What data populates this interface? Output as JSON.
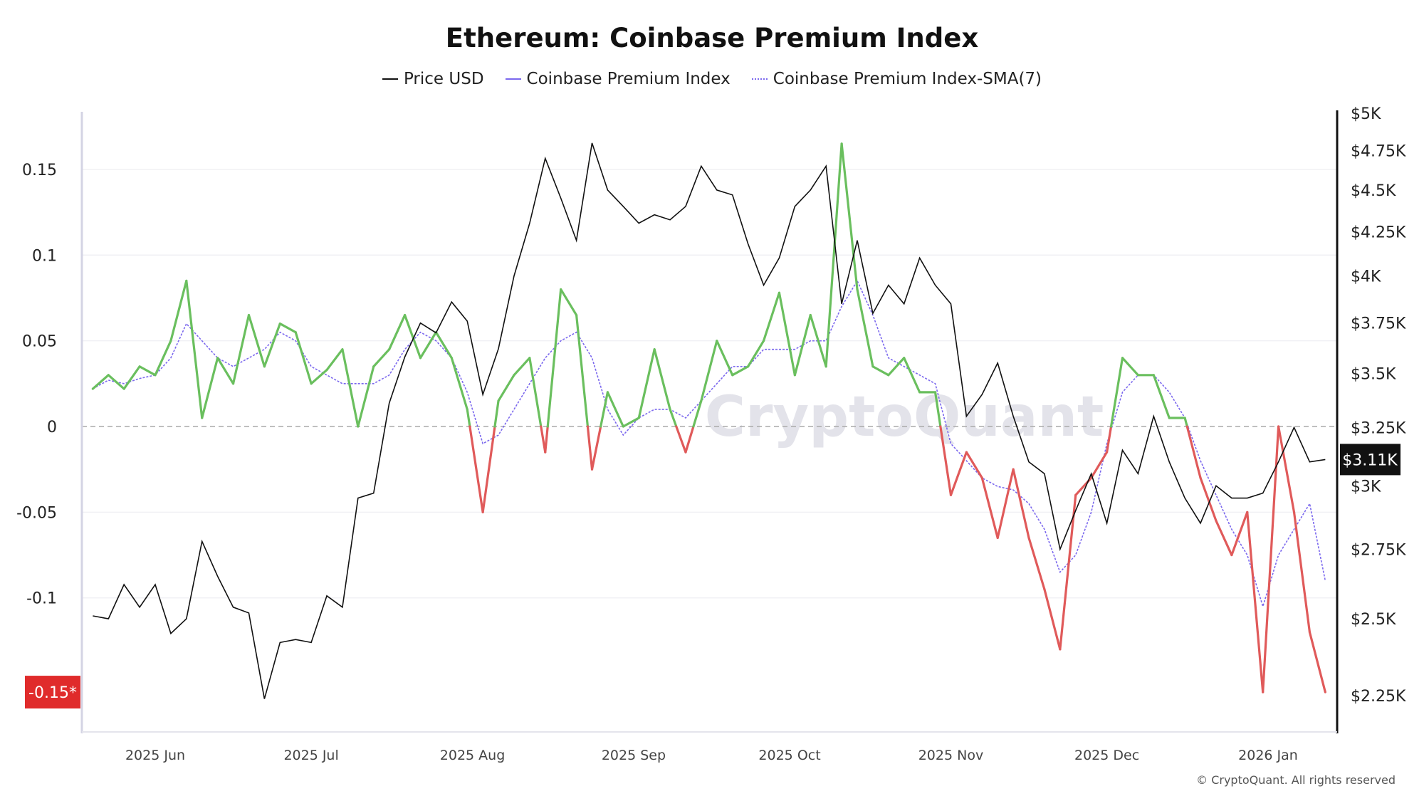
{
  "title": "Ethereum: Coinbase Premium Index",
  "legend": [
    "Price USD",
    "Coinbase Premium Index",
    "Coinbase Premium Index-SMA(7)"
  ],
  "watermark": "CryptoQuant",
  "copyright": "© CryptoQuant. All rights reserved",
  "colors": {
    "price": "#111111",
    "positive": "#6abf5e",
    "negative": "#e05a5a",
    "sma": "#7b68ee",
    "badge_left": "#e02b2b",
    "badge_right": "#111111"
  },
  "chart_data": {
    "type": "line",
    "title": "Ethereum: Coinbase Premium Index",
    "left_axis": {
      "ticks": [
        0.15,
        0.1,
        0.05,
        0,
        -0.05,
        -0.1
      ],
      "tick_labels": [
        "0.15",
        "0.1",
        "0.05",
        "0",
        "-0.05",
        "-0.1"
      ],
      "ylim": [
        -0.178,
        0.184
      ],
      "current_badge": "-0.15*"
    },
    "right_axis": {
      "scale": "log",
      "ticks": [
        5000,
        4750,
        4500,
        4250,
        4000,
        3750,
        3500,
        3250,
        3000,
        2750,
        2500,
        2250
      ],
      "tick_labels": [
        "$5K",
        "$4.75K",
        "$4.5K",
        "$4.25K",
        "$4K",
        "$3.75K",
        "$3.5K",
        "$3.25K",
        "$3K",
        "$2.75K",
        "$2.5K",
        "$2.25K"
      ],
      "current_badge": "$3.11K"
    },
    "x_ticks": [
      {
        "date": "2025-06-01",
        "label": "2025 Jun"
      },
      {
        "date": "2025-07-01",
        "label": "2025 Jul"
      },
      {
        "date": "2025-08-01",
        "label": "2025 Aug"
      },
      {
        "date": "2025-09-01",
        "label": "2025 Sep"
      },
      {
        "date": "2025-10-01",
        "label": "2025 Oct"
      },
      {
        "date": "2025-11-01",
        "label": "2025 Nov"
      },
      {
        "date": "2025-12-01",
        "label": "2025 Dec"
      },
      {
        "date": "2026-01-01",
        "label": "2026 Jan"
      }
    ],
    "grid": true,
    "legend_position": "top",
    "x": [
      "2025-05-20",
      "2025-05-23",
      "2025-05-26",
      "2025-05-29",
      "2025-06-01",
      "2025-06-04",
      "2025-06-07",
      "2025-06-10",
      "2025-06-13",
      "2025-06-16",
      "2025-06-19",
      "2025-06-22",
      "2025-06-25",
      "2025-06-28",
      "2025-07-01",
      "2025-07-04",
      "2025-07-07",
      "2025-07-10",
      "2025-07-13",
      "2025-07-16",
      "2025-07-19",
      "2025-07-22",
      "2025-07-25",
      "2025-07-28",
      "2025-07-31",
      "2025-08-03",
      "2025-08-06",
      "2025-08-09",
      "2025-08-12",
      "2025-08-15",
      "2025-08-18",
      "2025-08-21",
      "2025-08-24",
      "2025-08-27",
      "2025-08-30",
      "2025-09-02",
      "2025-09-05",
      "2025-09-08",
      "2025-09-11",
      "2025-09-14",
      "2025-09-17",
      "2025-09-20",
      "2025-09-23",
      "2025-09-26",
      "2025-09-29",
      "2025-10-02",
      "2025-10-05",
      "2025-10-08",
      "2025-10-11",
      "2025-10-14",
      "2025-10-17",
      "2025-10-20",
      "2025-10-23",
      "2025-10-26",
      "2025-10-29",
      "2025-11-01",
      "2025-11-04",
      "2025-11-07",
      "2025-11-10",
      "2025-11-13",
      "2025-11-16",
      "2025-11-19",
      "2025-11-22",
      "2025-11-25",
      "2025-11-28",
      "2025-12-01",
      "2025-12-04",
      "2025-12-07",
      "2025-12-10",
      "2025-12-13",
      "2025-12-16",
      "2025-12-19",
      "2025-12-22",
      "2025-12-25",
      "2025-12-28",
      "2025-12-31",
      "2026-01-03",
      "2026-01-06",
      "2026-01-09",
      "2026-01-12"
    ],
    "series": [
      {
        "name": "Price USD",
        "axis": "right",
        "values": [
          2510,
          2500,
          2620,
          2540,
          2620,
          2450,
          2500,
          2780,
          2650,
          2540,
          2520,
          2240,
          2420,
          2430,
          2420,
          2580,
          2540,
          2950,
          2970,
          3360,
          3580,
          3750,
          3700,
          3860,
          3760,
          3400,
          3620,
          4000,
          4300,
          4700,
          4450,
          4200,
          4800,
          4500,
          4400,
          4300,
          4350,
          4320,
          4400,
          4650,
          4500,
          4470,
          4180,
          3950,
          4100,
          4400,
          4500,
          4650,
          3850,
          4200,
          3800,
          3950,
          3850,
          4100,
          3950,
          3850,
          3300,
          3400,
          3550,
          3300,
          3100,
          3050,
          2750,
          2900,
          3050,
          2850,
          3150,
          3050,
          3300,
          3100,
          2950,
          2850,
          3000,
          2950,
          2950,
          2970,
          3100,
          3250,
          3100,
          3110
        ]
      },
      {
        "name": "Coinbase Premium Index",
        "axis": "left",
        "values": [
          0.022,
          0.03,
          0.022,
          0.035,
          0.03,
          0.05,
          0.085,
          0.005,
          0.04,
          0.025,
          0.065,
          0.035,
          0.06,
          0.055,
          0.025,
          0.033,
          0.045,
          0.0,
          0.035,
          0.045,
          0.065,
          0.04,
          0.055,
          0.04,
          0.01,
          -0.05,
          0.015,
          0.03,
          0.04,
          -0.015,
          0.08,
          0.065,
          -0.025,
          0.02,
          0.0,
          0.005,
          0.045,
          0.01,
          -0.015,
          0.015,
          0.05,
          0.03,
          0.035,
          0.05,
          0.078,
          0.03,
          0.065,
          0.035,
          0.165,
          0.08,
          0.035,
          0.03,
          0.04,
          0.02,
          0.02,
          -0.04,
          -0.015,
          -0.03,
          -0.065,
          -0.025,
          -0.065,
          -0.095,
          -0.13,
          -0.04,
          -0.03,
          -0.015,
          0.04,
          0.03,
          0.03,
          0.005,
          0.005,
          -0.03,
          -0.055,
          -0.075,
          -0.05,
          -0.155,
          0.0,
          -0.05,
          -0.12,
          -0.155
        ]
      },
      {
        "name": "Coinbase Premium Index-SMA(7)",
        "axis": "left",
        "values": [
          0.022,
          0.027,
          0.025,
          0.028,
          0.03,
          0.04,
          0.06,
          0.05,
          0.04,
          0.035,
          0.04,
          0.045,
          0.055,
          0.05,
          0.035,
          0.03,
          0.025,
          0.025,
          0.025,
          0.03,
          0.045,
          0.055,
          0.05,
          0.04,
          0.02,
          -0.01,
          -0.005,
          0.01,
          0.025,
          0.04,
          0.05,
          0.055,
          0.04,
          0.01,
          -0.005,
          0.005,
          0.01,
          0.01,
          0.005,
          0.015,
          0.025,
          0.035,
          0.035,
          0.045,
          0.045,
          0.045,
          0.05,
          0.05,
          0.07,
          0.085,
          0.065,
          0.04,
          0.035,
          0.03,
          0.025,
          -0.01,
          -0.02,
          -0.03,
          -0.035,
          -0.037,
          -0.045,
          -0.06,
          -0.085,
          -0.075,
          -0.05,
          -0.01,
          0.02,
          0.03,
          0.03,
          0.02,
          0.005,
          -0.02,
          -0.04,
          -0.06,
          -0.075,
          -0.105,
          -0.075,
          -0.06,
          -0.045,
          -0.09
        ]
      }
    ]
  }
}
